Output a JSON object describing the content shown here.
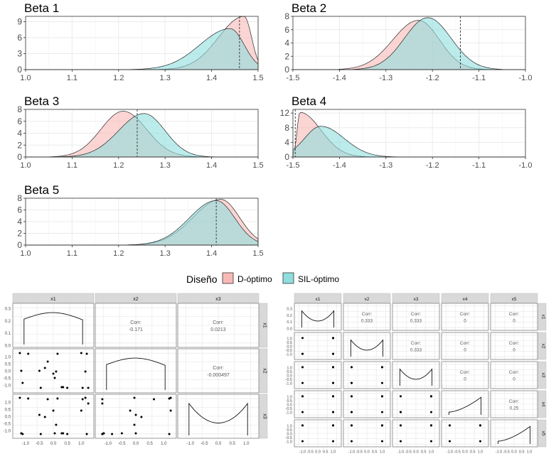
{
  "legend": {
    "title": "Diseño",
    "items": [
      {
        "label": "D-óptimo",
        "color": "#f8b9b6"
      },
      {
        "label": "SIL-óptimo",
        "color": "#8fdede"
      }
    ]
  },
  "colors": {
    "d_fill": "#f8b9b6",
    "sil_fill": "#8fdede",
    "overlap": "#a7bfbc",
    "line": "#222222",
    "grid": "#ebebeb",
    "strip": "#d9d9d9"
  },
  "chart_data": [
    {
      "type": "area",
      "title": "Beta 1",
      "xlim": [
        1.0,
        1.5
      ],
      "ylim": [
        0,
        10
      ],
      "x_ticks": [
        "1.0",
        "1.1",
        "1.2",
        "1.3",
        "1.4",
        "1.5"
      ],
      "y_ticks": [
        "0",
        "3",
        "6",
        "9"
      ],
      "vline": 1.46,
      "series": [
        {
          "name": "D-óptimo",
          "peak_x": 1.47,
          "peak_y": 10.0,
          "sd_left": 0.055,
          "sd_right": 0.016,
          "min_x": 1.25,
          "max_x": 1.5
        },
        {
          "name": "SIL-óptimo",
          "peak_x": 1.44,
          "peak_y": 7.7,
          "sd_left": 0.065,
          "sd_right": 0.03,
          "min_x": 1.22,
          "max_x": 1.5
        }
      ]
    },
    {
      "type": "area",
      "title": "Beta 2",
      "xlim": [
        -1.5,
        -1.0
      ],
      "ylim": [
        0,
        8
      ],
      "x_ticks": [
        "-1.5",
        "-1.4",
        "-1.3",
        "-1.2",
        "-1.1",
        "-1.0"
      ],
      "y_ticks": [
        "0",
        "2",
        "4",
        "6",
        "8"
      ],
      "vline": -1.14,
      "series": [
        {
          "name": "D-óptimo",
          "peak_x": -1.23,
          "peak_y": 7.4,
          "sd_left": 0.055,
          "sd_right": 0.045,
          "min_x": -1.4,
          "max_x": -1.07
        },
        {
          "name": "SIL-óptimo",
          "peak_x": -1.21,
          "peak_y": 7.8,
          "sd_left": 0.05,
          "sd_right": 0.05,
          "min_x": -1.37,
          "max_x": -1.05
        }
      ]
    },
    {
      "type": "area",
      "title": "Beta 3",
      "xlim": [
        1.0,
        1.5
      ],
      "ylim": [
        0,
        8
      ],
      "x_ticks": [
        "1.0",
        "1.1",
        "1.2",
        "1.3",
        "1.4",
        "1.5"
      ],
      "y_ticks": [
        "0",
        "2",
        "4",
        "6",
        "8"
      ],
      "vline": 1.24,
      "series": [
        {
          "name": "D-óptimo",
          "peak_x": 1.21,
          "peak_y": 7.7,
          "sd_left": 0.048,
          "sd_right": 0.05,
          "min_x": 1.03,
          "max_x": 1.42
        },
        {
          "name": "SIL-óptimo",
          "peak_x": 1.255,
          "peak_y": 7.3,
          "sd_left": 0.055,
          "sd_right": 0.045,
          "min_x": 1.06,
          "max_x": 1.46
        }
      ]
    },
    {
      "type": "area",
      "title": "Beta 4",
      "xlim": [
        -1.5,
        -1.0
      ],
      "ylim": [
        0,
        13
      ],
      "x_ticks": [
        "-1.5",
        "-1.4",
        "-1.3",
        "-1.2",
        "-1.1",
        "-1.0"
      ],
      "y_ticks": [
        "0",
        "4",
        "8",
        "12"
      ],
      "vline": -1.495,
      "series": [
        {
          "name": "D-óptimo",
          "peak_x": -1.485,
          "peak_y": 12.2,
          "sd_left": 0.006,
          "sd_right": 0.045,
          "min_x": -1.5,
          "max_x": -1.33
        },
        {
          "name": "SIL-óptimo",
          "peak_x": -1.44,
          "peak_y": 8.4,
          "sd_left": 0.035,
          "sd_right": 0.05,
          "min_x": -1.5,
          "max_x": -1.21
        }
      ]
    },
    {
      "type": "area",
      "title": "Beta 5",
      "xlim": [
        1.0,
        1.5
      ],
      "ylim": [
        0,
        8
      ],
      "x_ticks": [
        "1.0",
        "1.1",
        "1.2",
        "1.3",
        "1.4",
        "1.5"
      ],
      "y_ticks": [
        "0",
        "2",
        "4",
        "6",
        "8"
      ],
      "vline": 1.41,
      "series": [
        {
          "name": "D-óptimo",
          "peak_x": 1.42,
          "peak_y": 7.8,
          "sd_left": 0.06,
          "sd_right": 0.04,
          "min_x": 1.2,
          "max_x": 1.5
        },
        {
          "name": "SIL-óptimo",
          "peak_x": 1.41,
          "peak_y": 7.6,
          "sd_left": 0.058,
          "sd_right": 0.04,
          "min_x": 1.2,
          "max_x": 1.5
        }
      ]
    },
    {
      "type": "scatter",
      "title": "",
      "vars": [
        "x1",
        "x2",
        "x3"
      ],
      "corr": {
        "1-0": "-0.171",
        "2-0": "0.0213",
        "2-1": "-0.000497"
      },
      "corr_label": "Corr:",
      "x_ticks": [
        "-1.0",
        "-0.5",
        "0.0",
        "0.5",
        "1.0"
      ],
      "y_ticks_first": [
        "0.0",
        "0.1",
        "0.2",
        "0.3"
      ],
      "y_ticks": [
        "-1.0",
        "-0.5",
        "0.0",
        "0.5",
        "1.0"
      ],
      "density_shapes": [
        "flat",
        "flat",
        "u"
      ],
      "points": [
        [
          -1.2,
          1.25,
          1.3
        ],
        [
          -1.15,
          0.0,
          -1.2
        ],
        [
          -1.1,
          -0.85,
          -1.25
        ],
        [
          -0.9,
          1.2,
          1.25
        ],
        [
          -0.5,
          0.0,
          0.1
        ],
        [
          -0.45,
          -1.2,
          -1.25
        ],
        [
          -0.3,
          0.2,
          -0.05
        ],
        [
          -0.2,
          0.65,
          1.2
        ],
        [
          0.0,
          -0.2,
          0.4
        ],
        [
          0.05,
          -0.5,
          -1.2
        ],
        [
          0.1,
          -0.05,
          -0.6
        ],
        [
          0.15,
          1.2,
          1.25
        ],
        [
          0.3,
          -1.15,
          -1.2
        ],
        [
          0.35,
          -1.15,
          -1.2
        ],
        [
          0.5,
          -1.2,
          -1.25
        ],
        [
          1.0,
          1.25,
          0.4
        ],
        [
          1.05,
          -1.2,
          1.2
        ],
        [
          1.15,
          -0.05,
          1.3
        ],
        [
          1.2,
          1.2,
          -1.25
        ],
        [
          1.25,
          -1.2,
          0.9
        ]
      ]
    },
    {
      "type": "scatter",
      "title": "",
      "vars": [
        "x1",
        "x2",
        "x3",
        "x4",
        "x5"
      ],
      "corr": {
        "1-0": "0.333",
        "2-0": "0.333",
        "3-0": "0",
        "4-0": "0",
        "2-1": "0.333",
        "3-1": "0",
        "4-1": "0",
        "3-2": "0",
        "4-2": "0",
        "4-3": "0.25"
      },
      "corr_label": "Corr:",
      "x_ticks": [
        "-1.0",
        "-0.5",
        "0.0",
        "0.5",
        "1.0"
      ],
      "y_ticks_first": [
        "0.0",
        "0.1",
        "0.2",
        "0.3"
      ],
      "y_ticks": [
        "-1.0",
        "-0.5",
        "0.0",
        "0.5",
        "1.0"
      ],
      "density_shapes": [
        "u",
        "u",
        "u",
        "ramp",
        "ramp"
      ],
      "points": [
        [
          -1,
          -1,
          -1,
          -1,
          -1
        ],
        [
          -1,
          1,
          1,
          1,
          1
        ],
        [
          1,
          -1,
          1,
          1,
          1
        ],
        [
          1,
          1,
          -1,
          1,
          1
        ],
        [
          1,
          1,
          1,
          -1,
          1
        ],
        [
          1,
          1,
          1,
          1,
          -1
        ],
        [
          -1,
          -1,
          1,
          1,
          1
        ],
        [
          1,
          -1,
          -1,
          -1,
          1
        ]
      ]
    }
  ]
}
